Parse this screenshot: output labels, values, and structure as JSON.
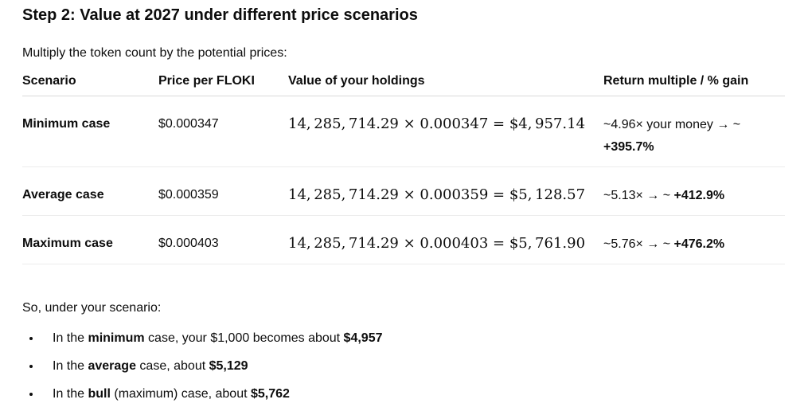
{
  "colors": {
    "background": "#ffffff",
    "text": "#0d0d0d",
    "header_border": "#d9d9d9",
    "row_border": "#ececec"
  },
  "heading": "Step 2: Value at 2027 under different price scenarios",
  "intro": "Multiply the token count by the potential prices:",
  "table": {
    "headers": [
      "Scenario",
      "Price per FLOKI",
      "Value of your holdings",
      "Return multiple / % gain"
    ],
    "rows": [
      {
        "scenario": "Minimum case",
        "price": "$0.000347",
        "value_formula": "14, 285, 714.29 × 0.000347 = $4, 957.14",
        "return_parts": [
          {
            "t": "~4.96× your money → ~ ",
            "b": false
          },
          {
            "t": "+395.7%",
            "b": true
          }
        ]
      },
      {
        "scenario": "Average case",
        "price": "$0.000359",
        "value_formula": "14, 285, 714.29 × 0.000359 = $5, 128.57",
        "return_parts": [
          {
            "t": "~5.13× → ~ ",
            "b": false
          },
          {
            "t": "+412.9%",
            "b": true
          }
        ]
      },
      {
        "scenario": "Maximum case",
        "price": "$0.000403",
        "value_formula": "14, 285, 714.29 × 0.000403 = $5, 761.90",
        "return_parts": [
          {
            "t": "~5.76× → ~ ",
            "b": false
          },
          {
            "t": "+476.2%",
            "b": true
          }
        ]
      }
    ]
  },
  "outro": "So, under your scenario:",
  "bullets": [
    [
      {
        "t": "In the ",
        "b": false
      },
      {
        "t": "minimum",
        "b": true
      },
      {
        "t": " case, your $1,000 becomes about ",
        "b": false
      },
      {
        "t": "$4,957",
        "b": true
      }
    ],
    [
      {
        "t": "In the ",
        "b": false
      },
      {
        "t": "average",
        "b": true
      },
      {
        "t": " case, about ",
        "b": false
      },
      {
        "t": "$5,129",
        "b": true
      }
    ],
    [
      {
        "t": "In the ",
        "b": false
      },
      {
        "t": "bull",
        "b": true
      },
      {
        "t": " (maximum) case, about ",
        "b": false
      },
      {
        "t": "$5,762",
        "b": true
      }
    ]
  ]
}
